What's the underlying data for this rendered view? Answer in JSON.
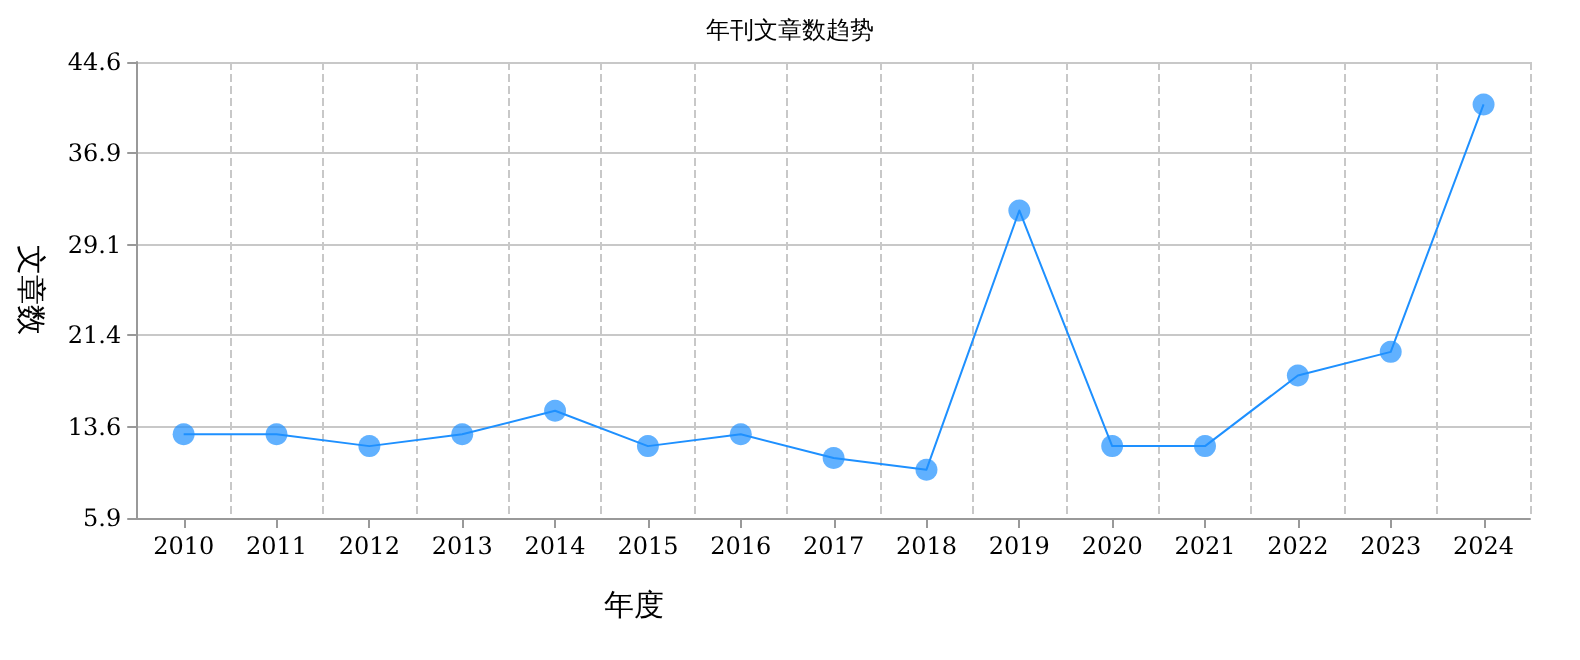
{
  "chart_data": {
    "type": "line",
    "title": "年刊文章数趋势",
    "xlabel": "年度",
    "ylabel": "文章数",
    "categories": [
      "2010",
      "2011",
      "2012",
      "2013",
      "2014",
      "2015",
      "2016",
      "2017",
      "2018",
      "2019",
      "2020",
      "2021",
      "2022",
      "2023",
      "2024"
    ],
    "series": [
      {
        "color": "#1e90ff",
        "values": [
          13,
          13,
          12,
          13,
          15,
          12,
          13,
          11,
          10,
          32,
          12,
          12,
          18,
          20,
          41
        ]
      }
    ],
    "ylim": [
      5.9,
      44.6
    ],
    "yticks": [
      5.9,
      13.6,
      21.4,
      29.1,
      36.9,
      44.6
    ],
    "grid": true,
    "marker": "circle"
  }
}
